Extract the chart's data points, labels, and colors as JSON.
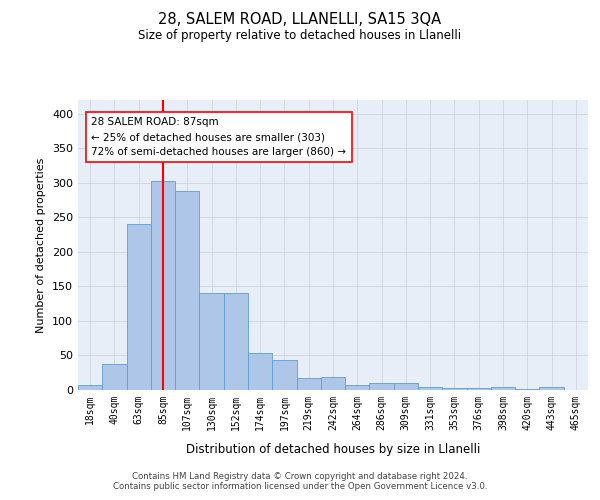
{
  "title_line1": "28, SALEM ROAD, LLANELLI, SA15 3QA",
  "title_line2": "Size of property relative to detached houses in Llanelli",
  "xlabel": "Distribution of detached houses by size in Llanelli",
  "ylabel": "Number of detached properties",
  "bar_labels": [
    "18sqm",
    "40sqm",
    "63sqm",
    "85sqm",
    "107sqm",
    "130sqm",
    "152sqm",
    "174sqm",
    "197sqm",
    "219sqm",
    "242sqm",
    "264sqm",
    "286sqm",
    "309sqm",
    "331sqm",
    "353sqm",
    "376sqm",
    "398sqm",
    "420sqm",
    "443sqm",
    "465sqm"
  ],
  "bar_values": [
    7,
    38,
    240,
    303,
    288,
    140,
    140,
    53,
    44,
    17,
    19,
    7,
    10,
    10,
    5,
    3,
    3,
    4,
    1,
    4,
    0
  ],
  "bar_color": "#aec6e8",
  "bar_edge_color": "#5a9fd4",
  "red_line_index": 3,
  "annotation_text": "28 SALEM ROAD: 87sqm\n← 25% of detached houses are smaller (303)\n72% of semi-detached houses are larger (860) →",
  "annotation_box_color": "white",
  "annotation_box_edge_color": "red",
  "ylim": [
    0,
    420
  ],
  "yticks": [
    0,
    50,
    100,
    150,
    200,
    250,
    300,
    350,
    400
  ],
  "background_color": "white",
  "ax_background": "#e8eef8",
  "footer_line1": "Contains HM Land Registry data © Crown copyright and database right 2024.",
  "footer_line2": "Contains public sector information licensed under the Open Government Licence v3.0.",
  "grid_color": "#c8d0dc"
}
